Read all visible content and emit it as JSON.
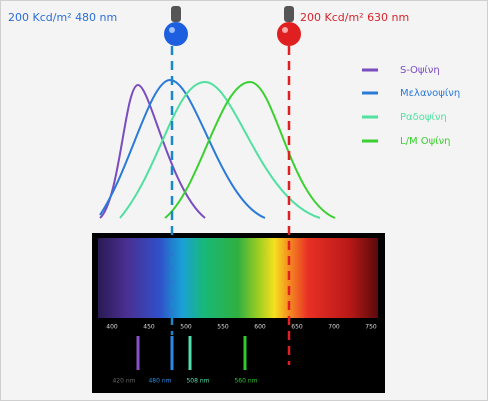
{
  "lamps": [
    {
      "label": "200 Kcd/m² 480 nm"
    },
    {
      "label": "200 Kcd/m² 630 nm"
    }
  ],
  "legend": [
    "S-Οψίνη",
    "Μελανοψίνη",
    "Ραδοψίνη",
    "L/M Οψίνη"
  ],
  "spectrum_ticks": [
    "400",
    "450",
    "500",
    "550",
    "600",
    "650",
    "700",
    "750"
  ],
  "peak_labels": [
    "420 nm",
    "480 nm",
    "508 nm",
    "560 nm"
  ]
}
